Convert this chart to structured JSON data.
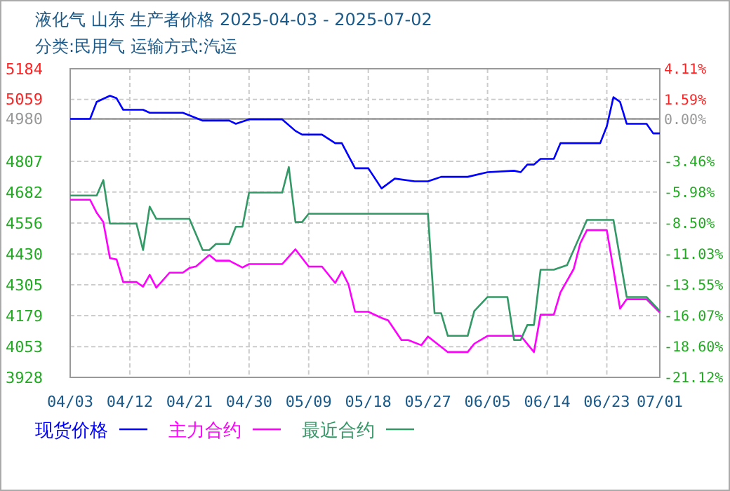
{
  "chart_data": {
    "type": "line",
    "title": "液化气 山东 生产者价格 2025-04-03 - 2025-07-02",
    "subtitle": "分类:民用气 运输方式:汽运",
    "xlim": [
      "--04-03",
      "--07-01"
    ],
    "xticks": [
      {
        "value": "--04-03",
        "label": "04/03"
      },
      {
        "value": "--04-12",
        "label": "04/12"
      },
      {
        "value": "--04-21",
        "label": "04/21"
      },
      {
        "value": "--04-30",
        "label": "04/30"
      },
      {
        "value": "--05-09",
        "label": "05/09"
      },
      {
        "value": "--05-18",
        "label": "05/18"
      },
      {
        "value": "--05-27",
        "label": "05/27"
      },
      {
        "value": "--06-05",
        "label": "06/05"
      },
      {
        "value": "--06-14",
        "label": "06/14"
      },
      {
        "value": "--06-23",
        "label": "06/23"
      },
      {
        "value": "--07-01",
        "label": "07/01"
      }
    ],
    "ylim": [
      3928,
      5184
    ],
    "yticks": [
      3928,
      4053,
      4179,
      4305,
      4430,
      4556,
      4682,
      4807,
      4980,
      5059,
      5184
    ],
    "y2lim": [
      -21.12,
      4.11
    ],
    "y2ticks": [
      {
        "value": 4.11,
        "label": "4.11%"
      },
      {
        "value": 1.59,
        "label": "1.59%"
      },
      {
        "value": 0,
        "label": "0.00%"
      },
      {
        "value": -3.46,
        "label": "-3.46%"
      },
      {
        "value": -5.98,
        "label": "-5.98%"
      },
      {
        "value": -8.5,
        "label": "-8.50%"
      },
      {
        "value": -11.03,
        "label": "-11.03%"
      },
      {
        "value": -13.55,
        "label": "-13.55%"
      },
      {
        "value": -16.07,
        "label": "-16.07%"
      },
      {
        "value": -18.6,
        "label": "-18.60%"
      },
      {
        "value": -21.12,
        "label": "-21.12%"
      }
    ],
    "grid": true,
    "legend": "bottom",
    "marker": "none",
    "line_style": "solid",
    "ref_lines": [
      {
        "axis": "y",
        "value": 4980,
        "color": "#999999"
      }
    ],
    "series": [
      {
        "name": "现货价格",
        "color": "#0000ff",
        "x": [
          "--04-03",
          "--04-06",
          "--04-07",
          "--04-09",
          "--04-10",
          "--04-11",
          "--04-14",
          "--04-15",
          "--04-20",
          "--04-23",
          "--04-27",
          "--04-28",
          "--04-30",
          "--05-05",
          "--05-07",
          "--05-08",
          "--05-11",
          "--05-13",
          "--05-14",
          "--05-16",
          "--05-18",
          "--05-20",
          "--05-22",
          "--05-25",
          "--05-27",
          "--05-29",
          "--06-02",
          "--06-05",
          "--06-09",
          "--06-10",
          "--06-11",
          "--06-12",
          "--06-13",
          "--06-15",
          "--06-16",
          "--06-22",
          "--06-23",
          "--06-24",
          "--06-25",
          "--06-26",
          "--06-29",
          "--06-30",
          "--07-01"
        ],
        "values": [
          4980,
          4980,
          5049,
          5074,
          5064,
          5017,
          5017,
          5005,
          5005,
          4973,
          4973,
          4960,
          4978,
          4978,
          4931,
          4916,
          4916,
          4881,
          4881,
          4779,
          4779,
          4697,
          4737,
          4726,
          4726,
          4744,
          4744,
          4763,
          4769,
          4763,
          4794,
          4794,
          4817,
          4817,
          4881,
          4881,
          4950,
          5068,
          5049,
          4960,
          4960,
          4921,
          4921
        ]
      },
      {
        "name": "主力合约",
        "color": "#ff00ff",
        "x": [
          "--04-03",
          "--04-06",
          "--04-07",
          "--04-08",
          "--04-09",
          "--04-10",
          "--04-11",
          "--04-13",
          "--04-14",
          "--04-15",
          "--04-16",
          "--04-18",
          "--04-20",
          "--04-21",
          "--04-22",
          "--04-24",
          "--04-25",
          "--04-27",
          "--04-29",
          "--04-30",
          "--05-05",
          "--05-07",
          "--05-09",
          "--05-11",
          "--05-13",
          "--05-14",
          "--05-15",
          "--05-16",
          "--05-18",
          "--05-20",
          "--05-21",
          "--05-23",
          "--05-24",
          "--05-26",
          "--05-27",
          "--05-30",
          "--06-02",
          "--06-03",
          "--06-05",
          "--06-10",
          "--06-12",
          "--06-13",
          "--06-15",
          "--06-16",
          "--06-18",
          "--06-19",
          "--06-20",
          "--06-23",
          "--06-25",
          "--06-26",
          "--06-29",
          "--07-01"
        ],
        "values": [
          4651,
          4651,
          4598,
          4560,
          4413,
          4408,
          4316,
          4316,
          4297,
          4345,
          4293,
          4354,
          4354,
          4373,
          4380,
          4426,
          4403,
          4403,
          4375,
          4389,
          4389,
          4449,
          4379,
          4379,
          4312,
          4360,
          4307,
          4195,
          4195,
          4170,
          4160,
          4080,
          4080,
          4059,
          4094,
          4031,
          4031,
          4065,
          4097,
          4097,
          4031,
          4183,
          4183,
          4274,
          4369,
          4474,
          4527,
          4527,
          4208,
          4246,
          4246,
          4192
        ]
      },
      {
        "name": "最近合约",
        "color": "#339966",
        "x": [
          "--04-03",
          "--04-07",
          "--04-08",
          "--04-09",
          "--04-13",
          "--04-14",
          "--04-15",
          "--04-16",
          "--04-21",
          "--04-23",
          "--04-24",
          "--04-25",
          "--04-27",
          "--04-28",
          "--04-29",
          "--04-30",
          "--05-05",
          "--05-06",
          "--05-07",
          "--05-08",
          "--05-09",
          "--05-27",
          "--05-28",
          "--05-29",
          "--05-30",
          "--06-02",
          "--06-03",
          "--06-05",
          "--06-08",
          "--06-09",
          "--06-10",
          "--06-11",
          "--06-12",
          "--06-13",
          "--06-15",
          "--06-17",
          "--06-20",
          "--06-24",
          "--06-26",
          "--06-29",
          "--07-01"
        ],
        "values": [
          4668,
          4668,
          4731,
          4554,
          4554,
          4446,
          4623,
          4573,
          4573,
          4446,
          4446,
          4471,
          4471,
          4541,
          4541,
          4680,
          4680,
          4784,
          4560,
          4560,
          4594,
          4594,
          4189,
          4189,
          4097,
          4097,
          4198,
          4255,
          4255,
          4080,
          4080,
          4141,
          4141,
          4366,
          4366,
          4385,
          4569,
          4569,
          4255,
          4255,
          4198
        ]
      }
    ]
  }
}
